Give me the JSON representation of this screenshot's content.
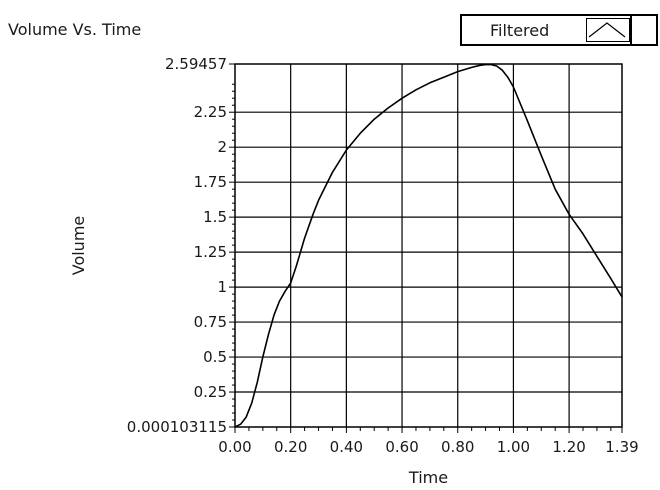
{
  "chart_data": {
    "type": "line",
    "title": "Volume Vs. Time",
    "xlabel": "Time",
    "ylabel": "Volume",
    "xlim": [
      0,
      1.39
    ],
    "ylim": [
      0.000103115,
      2.59457
    ],
    "grid": true,
    "legend_position": "top-right",
    "x_ticks": [
      {
        "value": 0,
        "label": "0.00"
      },
      {
        "value": 0.2,
        "label": "0.20"
      },
      {
        "value": 0.4,
        "label": "0.40"
      },
      {
        "value": 0.6,
        "label": "0.60"
      },
      {
        "value": 0.8,
        "label": "0.80"
      },
      {
        "value": 1.0,
        "label": "1.00"
      },
      {
        "value": 1.2,
        "label": "1.20"
      },
      {
        "value": 1.39,
        "label": "1.39"
      }
    ],
    "y_ticks": [
      {
        "value": 0.000103115,
        "label": "0.000103115"
      },
      {
        "value": 0.25,
        "label": "0.25"
      },
      {
        "value": 0.5,
        "label": "0.5"
      },
      {
        "value": 0.75,
        "label": "0.75"
      },
      {
        "value": 1,
        "label": "1"
      },
      {
        "value": 1.25,
        "label": "1.25"
      },
      {
        "value": 1.5,
        "label": "1.5"
      },
      {
        "value": 1.75,
        "label": "1.75"
      },
      {
        "value": 2,
        "label": "2"
      },
      {
        "value": 2.25,
        "label": "2.25"
      },
      {
        "value": 2.59457,
        "label": "2.59457"
      }
    ],
    "series": [
      {
        "name": "Filtered",
        "color": "#000000",
        "x": [
          0,
          0.02,
          0.04,
          0.06,
          0.08,
          0.1,
          0.12,
          0.14,
          0.16,
          0.18,
          0.2,
          0.22,
          0.25,
          0.28,
          0.3,
          0.35,
          0.4,
          0.45,
          0.5,
          0.55,
          0.6,
          0.65,
          0.7,
          0.75,
          0.8,
          0.85,
          0.88,
          0.9,
          0.92,
          0.94,
          0.96,
          0.98,
          1.0,
          1.05,
          1.1,
          1.15,
          1.2,
          1.25,
          1.3,
          1.35,
          1.39
        ],
        "y": [
          0.0001,
          0.02,
          0.07,
          0.17,
          0.32,
          0.5,
          0.66,
          0.8,
          0.9,
          0.97,
          1.03,
          1.15,
          1.35,
          1.52,
          1.62,
          1.82,
          1.98,
          2.1,
          2.2,
          2.28,
          2.35,
          2.41,
          2.46,
          2.5,
          2.54,
          2.57,
          2.585,
          2.59,
          2.59,
          2.58,
          2.55,
          2.5,
          2.43,
          2.19,
          1.94,
          1.7,
          1.52,
          1.38,
          1.22,
          1.06,
          0.93
        ]
      }
    ]
  }
}
